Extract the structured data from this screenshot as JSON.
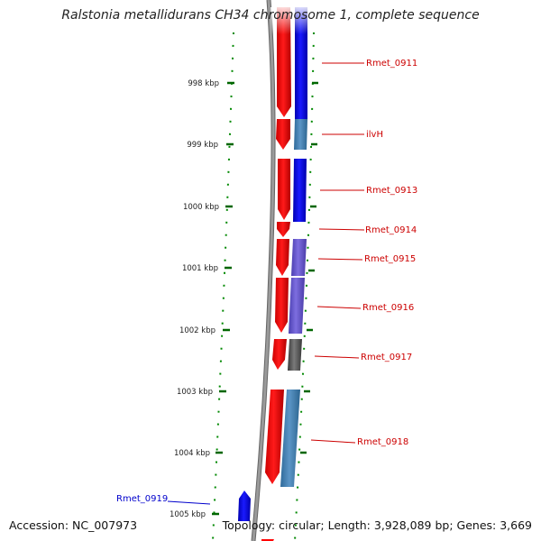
{
  "title": "Ralstonia metallidurans CH34 chromosome 1, complete sequence",
  "accession_text": "Accession: NC_007973",
  "topology_text": "Topology: circular; Length: 3,928,089 bp; Genes: 3,669",
  "ticks": [
    "998 kbp",
    "999 kbp",
    "1000 kbp",
    "1001 kbp",
    "1002 kbp",
    "1003 kbp",
    "1004 kbp",
    "1005 kbp"
  ],
  "genes_forward": [
    "Rmet_0911",
    "ilvH",
    "Rmet_0913",
    "Rmet_0914",
    "Rmet_0915",
    "Rmet_0916",
    "Rmet_0917",
    "Rmet_0918"
  ],
  "genes_reverse": [
    "Rmet_0919"
  ],
  "colors": {
    "backbone": "#8c8c8c",
    "tick": "#006600",
    "dot": "#008800",
    "forward_gene": "#ff0000",
    "forward_label": "#cc0000",
    "reverse_gene": "#0000ff",
    "reverse_label": "#0000cc",
    "cog_blue": "#0000ff",
    "cog_steel": "#4682b4",
    "cog_purple": "#6a5acd",
    "cog_gray": "#555555"
  }
}
